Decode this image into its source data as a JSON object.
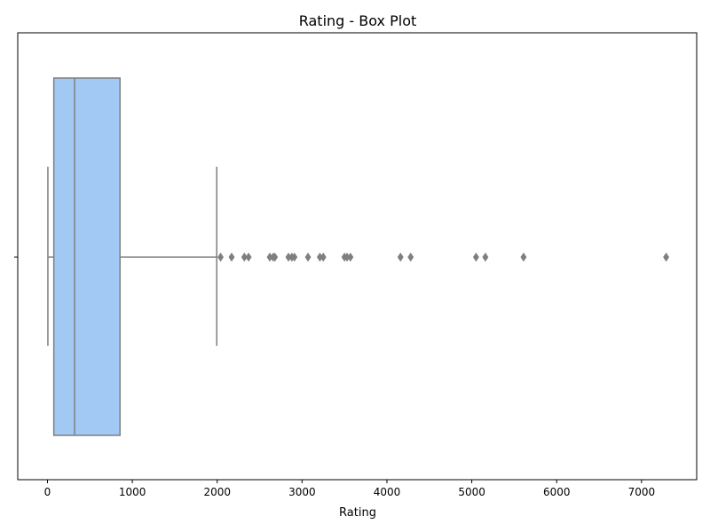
{
  "chart_data": {
    "type": "box",
    "title": "Rating - Box Plot",
    "xlabel": "Rating",
    "ylabel": "",
    "orientation": "horizontal",
    "xlim": [
      -350,
      7650
    ],
    "xticks": [
      0,
      1000,
      2000,
      3000,
      4000,
      5000,
      6000,
      7000
    ],
    "grid": false,
    "box": {
      "min": 5,
      "q1": 75,
      "median": 320,
      "q3": 855,
      "max": 1995
    },
    "outliers": [
      2040,
      2170,
      2320,
      2370,
      2620,
      2660,
      2680,
      2840,
      2880,
      2910,
      3070,
      3210,
      3250,
      3500,
      3530,
      3570,
      4160,
      4280,
      5050,
      5160,
      5610,
      7290
    ],
    "colors": {
      "box_fill": "#a1c9f4",
      "line": "#7f7f7f",
      "outlier": "#7f7f7f"
    }
  }
}
